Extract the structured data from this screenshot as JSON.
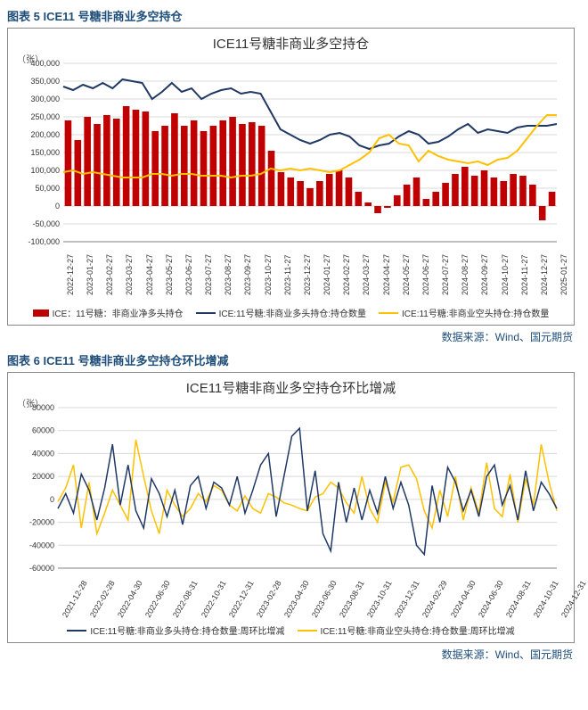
{
  "chart1": {
    "header": "图表 5  ICE11 号糖非商业多空持仓",
    "title": "ICE11号糖非商业多空持仓",
    "y_unit": "（张）",
    "type": "bar+line",
    "ylim": [
      -100000,
      400000
    ],
    "ytick_step": 50000,
    "yticks": [
      "-100,000",
      "-50,000",
      "0",
      "50,000",
      "100,000",
      "150,000",
      "200,000",
      "250,000",
      "300,000",
      "350,000",
      "400,000"
    ],
    "background_color": "#ffffff",
    "grid_color": "#d9d9d9",
    "axis_color": "#7f7f7f",
    "xlabels": [
      "2022-12-27",
      "2023-01-27",
      "2023-02-27",
      "2023-03-27",
      "2023-04-27",
      "2023-05-27",
      "2023-06-27",
      "2023-07-27",
      "2023-08-27",
      "2023-09-27",
      "2023-10-27",
      "2023-11-27",
      "2023-12-27",
      "2024-01-27",
      "2024-02-27",
      "2024-03-27",
      "2024-04-27",
      "2024-05-27",
      "2024-06-27",
      "2024-07-27",
      "2024-08-27",
      "2024-09-27",
      "2024-10-27",
      "2024-11-27",
      "2024-12-27",
      "2025-01-27"
    ],
    "series": {
      "net_long_bars": {
        "label": "ICE：11号糖：非商业净多头持仓",
        "color": "#c00000",
        "values": [
          240000,
          185000,
          250000,
          230000,
          255000,
          245000,
          280000,
          270000,
          265000,
          210000,
          225000,
          260000,
          225000,
          240000,
          210000,
          225000,
          240000,
          250000,
          230000,
          235000,
          225000,
          155000,
          95000,
          80000,
          70000,
          50000,
          70000,
          90000,
          100000,
          80000,
          40000,
          10000,
          -20000,
          -5000,
          30000,
          60000,
          80000,
          20000,
          40000,
          65000,
          90000,
          110000,
          85000,
          100000,
          80000,
          70000,
          90000,
          85000,
          60000,
          -40000,
          40000
        ]
      },
      "long_line": {
        "label": "ICE:11号糖:非商业多头持仓:持仓数量",
        "color": "#203864",
        "width": 2,
        "values": [
          335000,
          325000,
          340000,
          330000,
          345000,
          330000,
          355000,
          350000,
          345000,
          300000,
          320000,
          345000,
          320000,
          330000,
          300000,
          315000,
          325000,
          330000,
          315000,
          320000,
          315000,
          265000,
          215000,
          200000,
          185000,
          175000,
          185000,
          200000,
          205000,
          195000,
          170000,
          160000,
          170000,
          175000,
          195000,
          210000,
          200000,
          175000,
          180000,
          195000,
          215000,
          230000,
          205000,
          215000,
          210000,
          205000,
          220000,
          225000,
          225000,
          225000,
          230000
        ]
      },
      "short_line": {
        "label": "ICE:11号糖:非商业空头持仓:持仓数量",
        "color": "#ffc000",
        "width": 2,
        "values": [
          95000,
          100000,
          90000,
          95000,
          90000,
          85000,
          80000,
          80000,
          80000,
          90000,
          90000,
          85000,
          90000,
          90000,
          85000,
          85000,
          85000,
          80000,
          85000,
          85000,
          90000,
          105000,
          100000,
          105000,
          100000,
          105000,
          100000,
          95000,
          100000,
          115000,
          130000,
          150000,
          190000,
          200000,
          175000,
          170000,
          125000,
          155000,
          140000,
          130000,
          125000,
          120000,
          125000,
          115000,
          130000,
          135000,
          155000,
          190000,
          225000,
          255000,
          255000
        ]
      }
    },
    "source": "数据来源：Wind、国元期货"
  },
  "chart2": {
    "header": "图表 6  ICE11 号糖非商业多空持仓环比增减",
    "title": "ICE11号糖非商业多空持仓环比增减",
    "y_unit": "（张）",
    "type": "line",
    "ylim": [
      -60000,
      80000
    ],
    "ytick_step": 20000,
    "yticks": [
      "-60000",
      "-40000",
      "-20000",
      "0",
      "20000",
      "40000",
      "60000",
      "80000"
    ],
    "background_color": "#ffffff",
    "grid_color": "#d9d9d9",
    "axis_color": "#7f7f7f",
    "xlabels": [
      "2021-12-28",
      "2022-02-28",
      "2022-04-30",
      "2022-06-30",
      "2022-08-31",
      "2022-10-31",
      "2022-12-31",
      "2023-02-28",
      "2023-04-30",
      "2023-06-30",
      "2023-08-31",
      "2023-10-31",
      "2023-12-31",
      "2024-02-29",
      "2024-04-30",
      "2024-06-30",
      "2024-08-31",
      "2024-10-31",
      "2024-12-31"
    ],
    "series": {
      "long_wow": {
        "label": "ICE:11号糖:非商业多头持仓:持仓数量:周环比增减",
        "color": "#203864",
        "width": 1.5,
        "values": [
          -8000,
          5000,
          -12000,
          22000,
          8000,
          -18000,
          10000,
          48000,
          -5000,
          30000,
          -10000,
          -25000,
          18000,
          5000,
          -15000,
          8000,
          -22000,
          12000,
          20000,
          -8000,
          15000,
          10000,
          -5000,
          20000,
          -12000,
          8000,
          30000,
          40000,
          -15000,
          20000,
          55000,
          62000,
          -10000,
          25000,
          -30000,
          -45000,
          15000,
          -20000,
          10000,
          -18000,
          8000,
          -12000,
          20000,
          -8000,
          15000,
          -5000,
          -40000,
          -48000,
          12000,
          -20000,
          28000,
          15000,
          -10000,
          8000,
          -15000,
          20000,
          30000,
          -5000,
          12000,
          -18000,
          25000,
          -10000,
          15000,
          5000,
          -8000
        ]
      },
      "short_wow": {
        "label": "ICE:11号糖:非商业空头持仓:持仓数量:周环比增减",
        "color": "#ffc000",
        "width": 1.5,
        "values": [
          -2000,
          10000,
          30000,
          -25000,
          15000,
          -30000,
          -12000,
          8000,
          -5000,
          -18000,
          52000,
          20000,
          -10000,
          -30000,
          8000,
          -5000,
          -15000,
          -8000,
          5000,
          -2000,
          12000,
          8000,
          -5000,
          -10000,
          3000,
          -8000,
          -12000,
          5000,
          2000,
          -3000,
          -5000,
          -8000,
          -10000,
          2000,
          5000,
          15000,
          10000,
          -3000,
          -12000,
          20000,
          -8000,
          -20000,
          15000,
          -2000,
          28000,
          30000,
          18000,
          -10000,
          -25000,
          8000,
          -15000,
          20000,
          -18000,
          10000,
          -12000,
          32000,
          -8000,
          -15000,
          22000,
          -20000,
          18000,
          -5000,
          48000,
          15000,
          -10000
        ]
      }
    },
    "source": "数据来源：Wind、国元期货"
  }
}
